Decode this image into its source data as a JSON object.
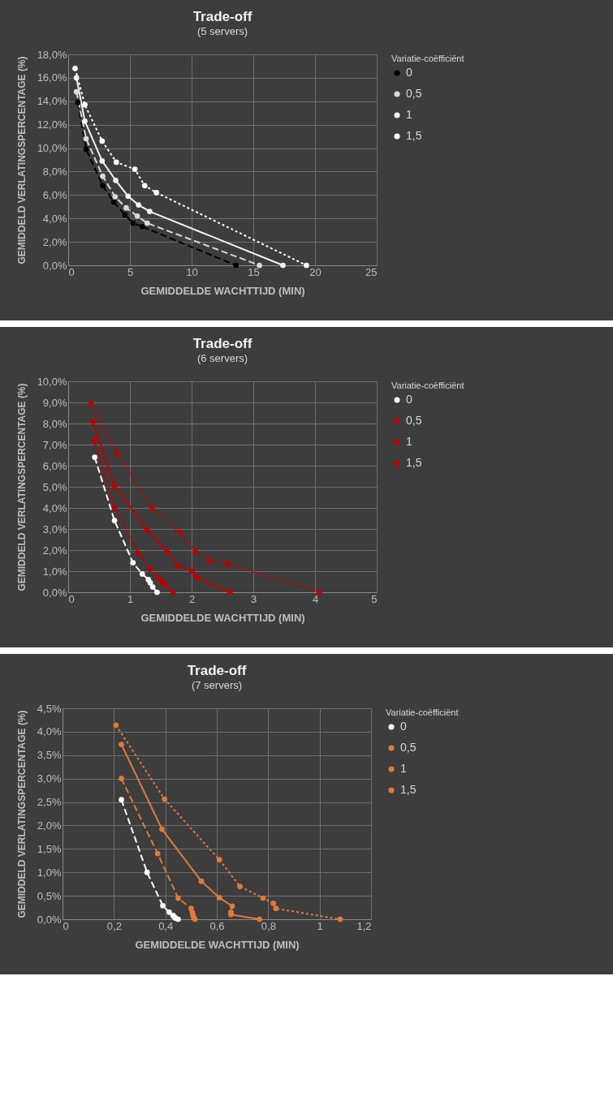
{
  "chart_data": [
    {
      "type": "line",
      "title": "Trade-off",
      "subtitle": "(5 servers)",
      "xlabel": "GEMIDDELDE WACHTTIJD (MIN)",
      "ylabel": "GEMIDDELD VERLATINGSPERCENTAGE (%)",
      "legend_title": "Variatie-coëfficiënt",
      "legend": "right",
      "grid": true,
      "marker": "circle",
      "xlim": [
        0,
        25
      ],
      "xticks": [
        0,
        5,
        10,
        15,
        20,
        25
      ],
      "ylim": [
        0,
        18
      ],
      "yticks": [
        {
          "value": 0,
          "label": "0,0%"
        },
        {
          "value": 2,
          "label": "2,0%"
        },
        {
          "value": 4,
          "label": "4,0%"
        },
        {
          "value": 6,
          "label": "6,0%"
        },
        {
          "value": 8,
          "label": "8,0%"
        },
        {
          "value": 10,
          "label": "10,0%"
        },
        {
          "value": 12,
          "label": "12,0%"
        },
        {
          "value": 14,
          "label": "14,0%"
        },
        {
          "value": 16,
          "label": "16,0%"
        },
        {
          "value": 18,
          "label": "18,0%"
        }
      ],
      "series": [
        {
          "name": "0",
          "color": "#000000",
          "line_style": "dashed",
          "x": [
            0.78,
            1.45,
            2.8,
            3.7,
            4.6,
            5.25,
            6.0,
            13.6
          ],
          "values": [
            13.9,
            9.9,
            6.8,
            5.4,
            4.3,
            3.6,
            3.3,
            0
          ]
        },
        {
          "name": "0,5",
          "color": "#d9d9d9",
          "line_style": "dashed",
          "x": [
            0.67,
            1.45,
            2.8,
            3.8,
            4.7,
            5.6,
            6.4,
            15.5
          ],
          "values": [
            14.8,
            10.8,
            7.6,
            5.85,
            4.9,
            4.2,
            3.6,
            0
          ]
        },
        {
          "name": "1",
          "color": "#f2f2f2",
          "line_style": "solid",
          "x": [
            0.67,
            1.35,
            2.75,
            3.85,
            4.85,
            5.7,
            6.6,
            17.4
          ],
          "values": [
            16.0,
            12.3,
            8.9,
            7.25,
            5.9,
            5.15,
            4.6,
            0
          ]
        },
        {
          "name": "1,5",
          "color": "#ffffff",
          "line_style": "dotted",
          "x": [
            0.56,
            1.35,
            2.75,
            3.9,
            5.4,
            6.2,
            7.15,
            19.3
          ],
          "values": [
            16.8,
            13.7,
            10.6,
            8.8,
            8.2,
            6.8,
            6.2,
            0
          ]
        }
      ]
    },
    {
      "type": "line",
      "title": "Trade-off",
      "subtitle": "(6 servers)",
      "xlabel": "GEMIDDELDE WACHTTIJD (MIN)",
      "ylabel": "GEMIDDELD VERLATINGSPERCENTAGE (%)",
      "legend_title": "Variatie-coëfficiënt",
      "legend": "right",
      "grid": true,
      "marker": "circle",
      "xlim": [
        0,
        5
      ],
      "xticks": [
        0,
        1,
        2,
        3,
        4,
        5
      ],
      "ylim": [
        0,
        10
      ],
      "yticks": [
        {
          "value": 0,
          "label": "0,0%"
        },
        {
          "value": 1,
          "label": "1,0%"
        },
        {
          "value": 2,
          "label": "2,0%"
        },
        {
          "value": 3,
          "label": "3,0%"
        },
        {
          "value": 4,
          "label": "4,0%"
        },
        {
          "value": 5,
          "label": "5,0%"
        },
        {
          "value": 6,
          "label": "6,0%"
        },
        {
          "value": 7,
          "label": "7,0%"
        },
        {
          "value": 8,
          "label": "8,0%"
        },
        {
          "value": 9,
          "label": "9,0%"
        },
        {
          "value": 10,
          "label": "10,0%"
        }
      ],
      "series": [
        {
          "name": "0",
          "color": "#ffffff",
          "line_style": "dashed",
          "x": [
            0.43,
            0.75,
            1.05,
            1.2,
            1.3,
            1.33,
            1.37,
            1.44
          ],
          "values": [
            6.4,
            3.4,
            1.4,
            0.87,
            0.6,
            0.45,
            0.25,
            0
          ]
        },
        {
          "name": "0,5",
          "color": "#c00000",
          "line_style": "dashed",
          "x": [
            0.42,
            0.75,
            1.14,
            1.33,
            1.46,
            1.52,
            1.57,
            1.7
          ],
          "values": [
            7.2,
            4.0,
            1.85,
            1.1,
            0.7,
            0.5,
            0.35,
            0
          ]
        },
        {
          "name": "1",
          "color": "#c00000",
          "line_style": "solid",
          "x": [
            0.4,
            0.75,
            1.28,
            1.6,
            1.78,
            2.01,
            2.09,
            2.62
          ],
          "values": [
            8.1,
            5.05,
            2.95,
            1.95,
            1.25,
            1.0,
            0.7,
            0
          ]
        },
        {
          "name": "1,5",
          "color": "#c00000",
          "line_style": "dotted",
          "x": [
            0.37,
            0.79,
            1.36,
            1.81,
            2.06,
            2.29,
            2.59,
            4.07
          ],
          "values": [
            8.95,
            6.6,
            4.0,
            2.85,
            1.95,
            1.5,
            1.35,
            0
          ]
        }
      ]
    },
    {
      "type": "line",
      "title": "Trade-off",
      "subtitle": "(7 servers)",
      "xlabel": "GEMIDDELDE WACHTTIJD (MIN)",
      "ylabel": "GEMIDDELD VERLATINGSPERCENTAGE (%)",
      "legend_title": "Variatie-coëfficiënt",
      "legend": "right",
      "grid": true,
      "marker": "circle",
      "xlim": [
        0,
        1.2
      ],
      "xticks": [
        0,
        {
          "value": 0.2,
          "label": "0,2"
        },
        {
          "value": 0.4,
          "label": "0,4"
        },
        {
          "value": 0.6,
          "label": "0,6"
        },
        {
          "value": 0.8,
          "label": "0,8"
        },
        1,
        {
          "value": 1.2,
          "label": "1,2"
        }
      ],
      "ylim": [
        0,
        4.5
      ],
      "yticks": [
        {
          "value": 0,
          "label": "0,0%"
        },
        {
          "value": 0.5,
          "label": "0,5%"
        },
        {
          "value": 1,
          "label": "1,0%"
        },
        {
          "value": 1.5,
          "label": "1,5%"
        },
        {
          "value": 2,
          "label": "2,0%"
        },
        {
          "value": 2.5,
          "label": "2,5%"
        },
        {
          "value": 3,
          "label": "3,0%"
        },
        {
          "value": 3.5,
          "label": "3,5%"
        },
        {
          "value": 4,
          "label": "4,0%"
        },
        {
          "value": 4.5,
          "label": "4,5%"
        }
      ],
      "series": [
        {
          "name": "0",
          "color": "#ffffff",
          "line_style": "dashed",
          "x": [
            0.229,
            0.329,
            0.39,
            0.415,
            0.43,
            0.435,
            0.44,
            0.45
          ],
          "values": [
            2.55,
            1.0,
            0.29,
            0.15,
            0.08,
            0.05,
            0.02,
            0
          ]
        },
        {
          "name": "0,5",
          "color": "#e07b39",
          "line_style": "dashed",
          "x": [
            0.229,
            0.37,
            0.45,
            0.5,
            0.505,
            0.508,
            0.51,
            0.515
          ],
          "values": [
            3.0,
            1.4,
            0.45,
            0.23,
            0.14,
            0.08,
            0.04,
            0
          ]
        },
        {
          "name": "1",
          "color": "#e07b39",
          "line_style": "solid",
          "x": [
            0.229,
            0.387,
            0.54,
            0.61,
            0.66,
            0.655,
            0.655,
            0.766
          ],
          "values": [
            3.73,
            1.92,
            0.81,
            0.46,
            0.28,
            0.15,
            0.1,
            0
          ]
        },
        {
          "name": "1,5",
          "color": "#e07b39",
          "line_style": "dotted",
          "x": [
            0.208,
            0.397,
            0.61,
            0.69,
            0.78,
            0.82,
            0.83,
            1.08
          ],
          "values": [
            4.14,
            2.56,
            1.27,
            0.7,
            0.45,
            0.34,
            0.23,
            0
          ]
        }
      ]
    }
  ]
}
